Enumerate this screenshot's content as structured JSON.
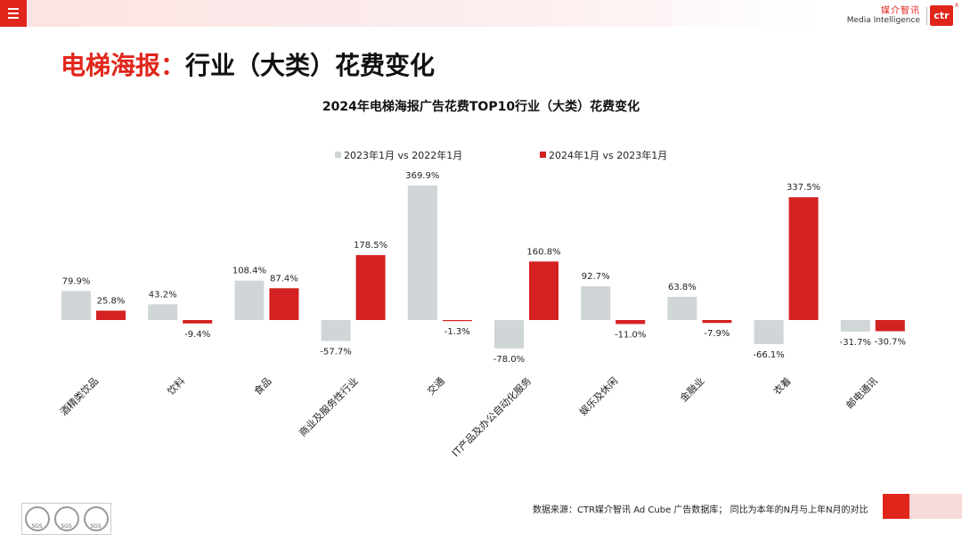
{
  "header": {
    "brand_cn": "媒介智讯",
    "brand_en": "Media Intelligence",
    "logo_text": "ctr",
    "logo_mark": "®",
    "menu_icon": "hamburger-icon"
  },
  "page": {
    "title_red": "电梯海报：",
    "title_black": "行业（大类）花费变化"
  },
  "chart_data": {
    "type": "bar",
    "title": "2024年电梯海报广告花费TOP10行业（大类）花费变化",
    "categories": [
      "酒精类饮品",
      "饮料",
      "食品",
      "商业及服务性行业",
      "交通",
      "IT产品及办公自动化服务",
      "娱乐及休闲",
      "金融业",
      "衣着",
      "邮电通讯"
    ],
    "series": [
      {
        "name": "2023年1月 vs 2022年1月",
        "color": "#d0d6d8",
        "values": [
          79.9,
          43.2,
          108.4,
          -57.7,
          369.9,
          -78.0,
          92.7,
          63.8,
          -66.1,
          -31.7
        ],
        "labels": [
          "79.9%",
          "43.2%",
          "108.4%",
          "-57.7%",
          "369.9%",
          "-78.0%",
          "92.7%",
          "63.8%",
          "-66.1%",
          "-31.7%"
        ]
      },
      {
        "name": "2024年1月 vs 2023年1月",
        "color": "#d42121",
        "values": [
          25.8,
          -9.4,
          87.4,
          178.5,
          -1.3,
          160.8,
          -11.0,
          -7.9,
          337.5,
          -30.7
        ],
        "labels": [
          "25.8%",
          "-9.4%",
          "87.4%",
          "178.5%",
          "-1.3%",
          "160.8%",
          "-11.0%",
          "-7.9%",
          "337.5%",
          "-30.7%"
        ]
      }
    ],
    "legend_position": "top-center",
    "grid": false,
    "ylim": [
      -80,
      370
    ]
  },
  "footer": {
    "source": "数据来源：CTR媒介智讯 Ad Cube 广告数据库； 同比为本年的N月与上年N月的对比",
    "cert_label": "SGS"
  }
}
